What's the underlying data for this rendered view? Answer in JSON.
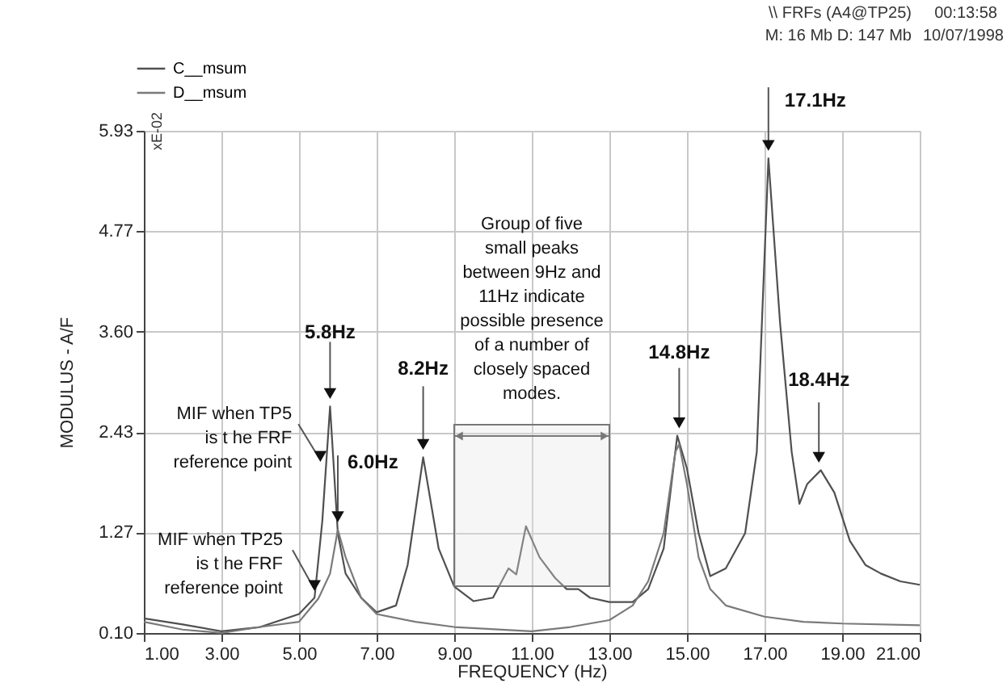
{
  "chart_data": {
    "type": "line",
    "xlabel": "FREQUENCY (Hz)",
    "ylabel": "MODULUS - A/F",
    "xlim": [
      1,
      21
    ],
    "xticks": [
      {
        "value": 1,
        "label": "1.00"
      },
      {
        "value": 3,
        "label": "3.00"
      },
      {
        "value": 5,
        "label": "5.00"
      },
      {
        "value": 7,
        "label": "7.00"
      },
      {
        "value": 9,
        "label": "9.00"
      },
      {
        "value": 11,
        "label": "11.00"
      },
      {
        "value": 13,
        "label": "13.00"
      },
      {
        "value": 15,
        "label": "15.00"
      },
      {
        "value": 17,
        "label": "17.00"
      },
      {
        "value": 19,
        "label": "19.00"
      },
      {
        "value": 21,
        "label": "21.00"
      }
    ],
    "ylim": [
      0.1,
      5.93
    ],
    "yticks": [
      {
        "value": 0.1,
        "label": "0.10"
      },
      1.27,
      2.43,
      {
        "value": 3.6,
        "label": "3.60"
      },
      4.77,
      5.93
    ],
    "grid": true,
    "legend": "top left",
    "line_style": "solid",
    "marker": "none",
    "series": [
      {
        "name": "C__msum",
        "color": "#505050",
        "x": [
          1,
          2,
          3,
          4,
          5,
          5.4,
          5.6,
          5.8,
          6.0,
          6.2,
          6.6,
          7,
          7.5,
          7.8,
          8.2,
          8.6,
          9,
          9.5,
          10,
          10.4,
          10.6,
          10.85,
          11.2,
          11.6,
          11.9,
          12.2,
          12.5,
          13,
          13.6,
          14,
          14.4,
          14.75,
          15,
          15.3,
          15.6,
          16,
          16.5,
          16.8,
          17.1,
          17.4,
          17.7,
          17.9,
          18.1,
          18.45,
          18.8,
          19.2,
          19.6,
          20,
          20.5,
          21
        ],
        "values": [
          0.27,
          0.2,
          0.12,
          0.17,
          0.32,
          0.51,
          1.4,
          2.73,
          1.26,
          0.79,
          0.51,
          0.34,
          0.42,
          0.89,
          2.14,
          1.08,
          0.64,
          0.47,
          0.51,
          0.85,
          0.78,
          1.34,
          0.98,
          0.74,
          0.61,
          0.61,
          0.51,
          0.46,
          0.46,
          0.61,
          1.08,
          2.39,
          2.01,
          1.26,
          0.76,
          0.85,
          1.26,
          2.2,
          5.61,
          3.7,
          2.2,
          1.6,
          1.83,
          1.99,
          1.73,
          1.17,
          0.89,
          0.79,
          0.7,
          0.66
        ]
      },
      {
        "name": "D__msum",
        "color": "#7a7a7a",
        "x": [
          1,
          2,
          3,
          4,
          5,
          5.5,
          5.8,
          6.0,
          6.2,
          6.6,
          7,
          8,
          9,
          11,
          12,
          13,
          13.6,
          14,
          14.4,
          14.7,
          14.8,
          15,
          15.3,
          15.6,
          16,
          17,
          18,
          19,
          21
        ],
        "values": [
          0.23,
          0.14,
          0.1,
          0.17,
          0.23,
          0.5,
          0.79,
          1.3,
          0.98,
          0.51,
          0.32,
          0.23,
          0.17,
          0.12,
          0.17,
          0.25,
          0.42,
          0.7,
          1.26,
          2.2,
          2.29,
          1.83,
          0.98,
          0.61,
          0.42,
          0.29,
          0.23,
          0.21,
          0.19
        ]
      }
    ],
    "bands": [
      {
        "axis": "x",
        "from": 9,
        "to": 13,
        "label": "Group of five\nsmall peaks\nbetween 9Hz and\n11Hz indicate\npossible presence\nof a number of\nclosely spaced\nmodes."
      }
    ],
    "annotations": [
      "\\\\ FRFs (A4@TP25)",
      "M: 16 Mb D: 147 Mb",
      "00:13:58",
      "10/07/1998",
      "xE-02",
      {
        "text": "5.8Hz",
        "x": 5.8,
        "y": 2.73
      },
      {
        "text": "6.0Hz",
        "x": 6.0,
        "y": 1.3
      },
      {
        "text": "8.2Hz",
        "x": 8.2,
        "y": 2.14
      },
      {
        "text": "14.8Hz",
        "x": 14.8,
        "y": 2.39
      },
      {
        "text": "17.1Hz",
        "x": 17.1,
        "y": 5.61
      },
      {
        "text": "18.4Hz",
        "x": 18.4,
        "y": 1.99
      },
      {
        "text": "MIF when TP5\nis t he FRF\nreference point",
        "x": 5.65,
        "y": 2.0
      },
      {
        "text": "MIF when TP25\nis t he FRF\nreference point",
        "x": 5.5,
        "y": 0.5
      }
    ]
  }
}
